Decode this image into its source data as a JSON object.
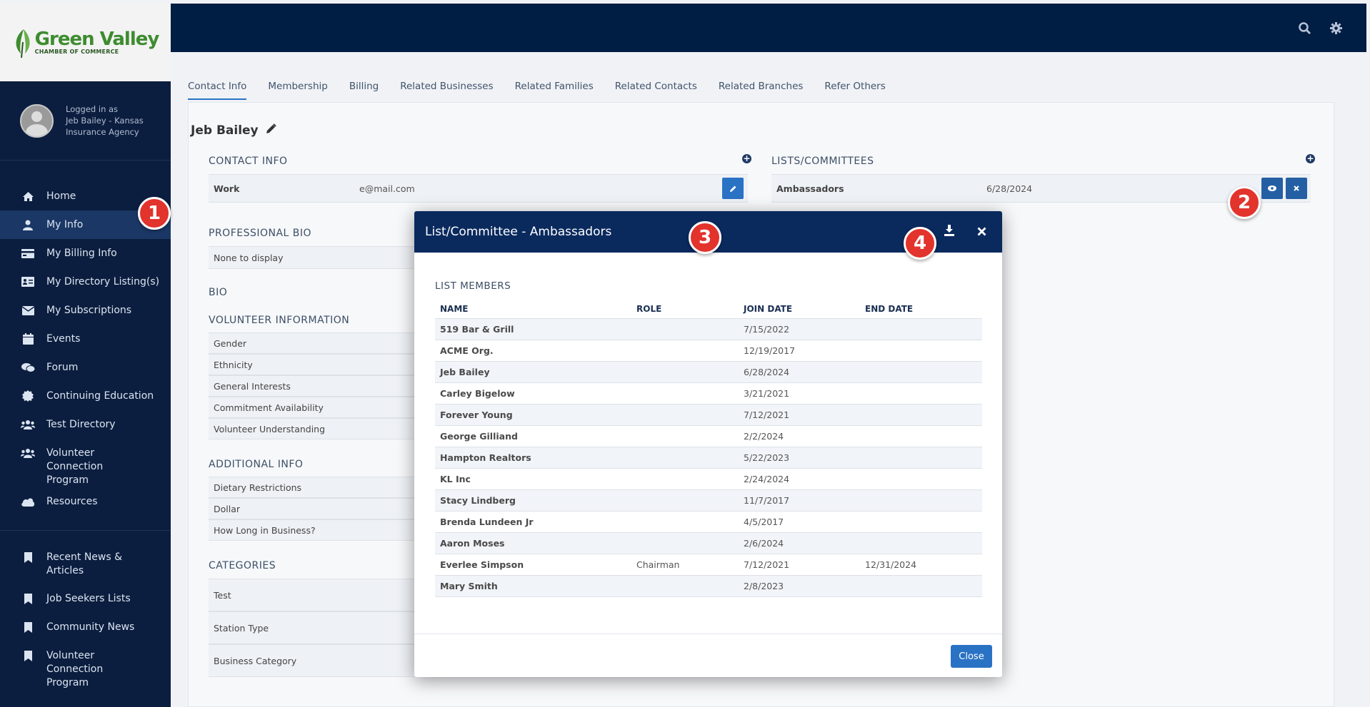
{
  "brand": {
    "name": "Green Valley",
    "tagline": "CHAMBER OF COMMERCE"
  },
  "user": {
    "logged_in_label": "Logged in as",
    "name_line1": "Jeb Bailey - Kansas",
    "name_line2": "Insurance Agency"
  },
  "nav": [
    {
      "label": "Home",
      "icon": "home-icon"
    },
    {
      "label": "My Info",
      "icon": "user-icon"
    },
    {
      "label": "My Billing Info",
      "icon": "credit-card-icon"
    },
    {
      "label": "My Directory Listing(s)",
      "icon": "id-card-icon"
    },
    {
      "label": "My Subscriptions",
      "icon": "envelope-icon"
    },
    {
      "label": "Events",
      "icon": "calendar-icon"
    },
    {
      "label": "Forum",
      "icon": "comments-icon"
    },
    {
      "label": "Continuing Education",
      "icon": "certificate-icon"
    },
    {
      "label": "Test Directory",
      "icon": "users-icon"
    },
    {
      "label": "Volunteer Connection Program",
      "icon": "users-icon"
    },
    {
      "label": "Resources",
      "icon": "cloud-icon"
    }
  ],
  "nav_secondary": [
    {
      "label": "Recent News & Articles"
    },
    {
      "label": "Job Seekers Lists"
    },
    {
      "label": "Community News"
    },
    {
      "label": "Volunteer Connection Program"
    }
  ],
  "tabs": [
    "Contact Info",
    "Membership",
    "Billing",
    "Related Businesses",
    "Related Families",
    "Related Contacts",
    "Related Branches",
    "Refer Others"
  ],
  "contact": {
    "name": "Jeb Bailey",
    "contact_info_title": "CONTACT INFO",
    "work_label": "Work",
    "work_value": "e@mail.com",
    "lists_title": "LISTS/COMMITTEES",
    "list_name": "Ambassadors",
    "list_date": "6/28/2024",
    "professional_bio_title": "PROFESSIONAL BIO",
    "professional_bio_value": "None to display",
    "bio_title": "BIO",
    "volunteer_title": "VOLUNTEER INFORMATION",
    "volunteer_rows": [
      "Gender",
      "Ethnicity",
      "General Interests",
      "Commitment Availability",
      "Volunteer Understanding"
    ],
    "additional_title": "ADDITIONAL INFO",
    "additional_rows": [
      "Dietary Restrictions",
      "Dollar",
      "How Long in Business?"
    ],
    "categories_title": "CATEGORIES",
    "category_rows": [
      "Test",
      "Station Type",
      "Business Category"
    ]
  },
  "badges": [
    "1",
    "2",
    "3",
    "4"
  ],
  "modal": {
    "title": "List/Committee - Ambassadors",
    "list_members_title": "LIST MEMBERS",
    "columns": [
      "NAME",
      "ROLE",
      "JOIN DATE",
      "END DATE"
    ],
    "rows": [
      {
        "name": "519 Bar & Grill",
        "role": "",
        "join": "7/15/2022",
        "end": ""
      },
      {
        "name": "ACME Org.",
        "role": "",
        "join": "12/19/2017",
        "end": ""
      },
      {
        "name": "Jeb Bailey",
        "role": "",
        "join": "6/28/2024",
        "end": ""
      },
      {
        "name": "Carley Bigelow",
        "role": "",
        "join": "3/21/2021",
        "end": ""
      },
      {
        "name": "Forever Young",
        "role": "",
        "join": "7/12/2021",
        "end": ""
      },
      {
        "name": "George Gilliand",
        "role": "",
        "join": "2/2/2024",
        "end": ""
      },
      {
        "name": "Hampton Realtors",
        "role": "",
        "join": "5/22/2023",
        "end": ""
      },
      {
        "name": "KL Inc",
        "role": "",
        "join": "2/24/2024",
        "end": ""
      },
      {
        "name": "Stacy Lindberg",
        "role": "",
        "join": "11/7/2017",
        "end": ""
      },
      {
        "name": "Brenda Lundeen Jr",
        "role": "",
        "join": "4/5/2017",
        "end": ""
      },
      {
        "name": "Aaron Moses",
        "role": "",
        "join": "2/6/2024",
        "end": ""
      },
      {
        "name": "Everlee Simpson",
        "role": "Chairman",
        "join": "7/12/2021",
        "end": "12/31/2024"
      },
      {
        "name": "Mary Smith",
        "role": "",
        "join": "2/8/2023",
        "end": ""
      }
    ],
    "close_label": "Close"
  }
}
